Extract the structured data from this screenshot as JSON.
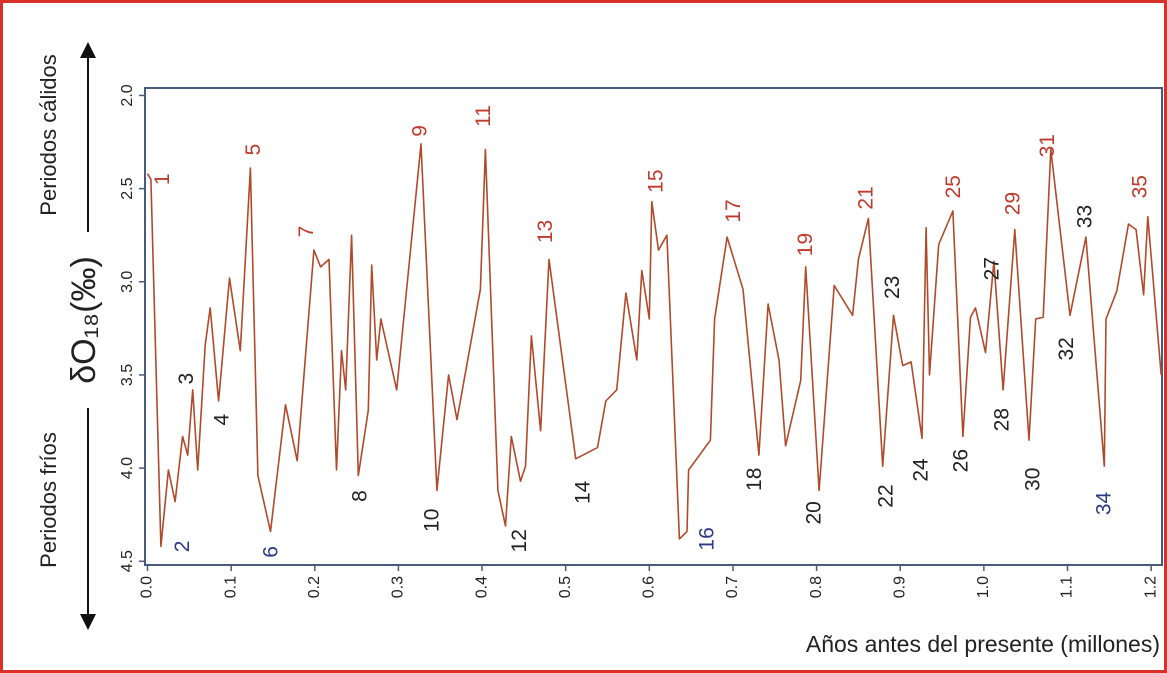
{
  "chart_data": {
    "type": "line",
    "y_label": "δO₁₈(‰)",
    "x_label": "Años antes del presente (millones)",
    "upper_side_label": "Periodos cálidos",
    "lower_side_label": "Periodos fríos",
    "xlim": [
      -0.003,
      1.213
    ],
    "ylim": [
      1.96,
      4.52
    ],
    "y_inverted": true,
    "xticks": [
      {
        "value": 0,
        "label": "0.0"
      },
      0.1,
      0.2,
      0.3,
      0.4,
      0.5,
      0.6,
      0.7,
      0.8,
      0.9,
      {
        "value": 1,
        "label": "1.0"
      },
      1.1,
      1.2
    ],
    "yticks": [
      {
        "value": 2,
        "label": "2.0"
      },
      2.5,
      {
        "value": 3,
        "label": "3.0"
      },
      3.5,
      {
        "value": 4,
        "label": "4.0"
      },
      4.5
    ],
    "x": [
      0.0,
      0.004,
      0.016,
      0.025,
      0.033,
      0.042,
      0.048,
      0.054,
      0.06,
      0.069,
      0.075,
      0.085,
      0.098,
      0.111,
      0.123,
      0.132,
      0.147,
      0.165,
      0.179,
      0.199,
      0.207,
      0.217,
      0.226,
      0.232,
      0.237,
      0.244,
      0.252,
      0.264,
      0.268,
      0.274,
      0.279,
      0.298,
      0.327,
      0.346,
      0.36,
      0.37,
      0.398,
      0.404,
      0.419,
      0.428,
      0.435,
      0.446,
      0.452,
      0.459,
      0.47,
      0.48,
      0.512,
      0.538,
      0.548,
      0.561,
      0.572,
      0.585,
      0.591,
      0.6,
      0.603,
      0.611,
      0.621,
      0.636,
      0.645,
      0.647,
      0.673,
      0.678,
      0.693,
      0.712,
      0.731,
      0.742,
      0.755,
      0.763,
      0.781,
      0.787,
      0.803,
      0.821,
      0.843,
      0.85,
      0.862,
      0.879,
      0.892,
      0.903,
      0.913,
      0.926,
      0.931,
      0.935,
      0.946,
      0.963,
      0.975,
      0.984,
      0.99,
      1.002,
      1.012,
      1.023,
      1.037,
      1.054,
      1.062,
      1.071,
      1.08,
      1.103,
      1.122,
      1.144,
      1.146,
      1.159,
      1.173,
      1.182,
      1.191,
      1.196,
      1.212
    ],
    "series": [
      {
        "color": "#b04a2a",
        "values": [
          2.42,
          2.45,
          4.42,
          4.01,
          4.18,
          3.83,
          3.93,
          3.58,
          4.01,
          3.34,
          3.14,
          3.64,
          2.98,
          3.37,
          2.39,
          4.04,
          4.34,
          3.66,
          3.96,
          2.83,
          2.92,
          2.88,
          4.01,
          3.37,
          3.58,
          2.75,
          4.04,
          3.69,
          2.91,
          3.42,
          3.2,
          3.58,
          2.26,
          4.12,
          3.5,
          3.74,
          3.04,
          2.29,
          4.12,
          4.31,
          3.83,
          4.07,
          3.99,
          3.29,
          3.8,
          2.88,
          3.95,
          3.89,
          3.64,
          3.58,
          3.06,
          3.42,
          2.94,
          3.2,
          2.57,
          2.83,
          2.75,
          4.38,
          4.34,
          4.01,
          3.85,
          3.2,
          2.76,
          3.04,
          3.93,
          3.12,
          3.42,
          3.88,
          3.53,
          2.92,
          4.12,
          3.02,
          3.18,
          2.88,
          2.66,
          3.99,
          3.18,
          3.45,
          3.43,
          3.84,
          2.71,
          3.5,
          2.8,
          2.62,
          3.83,
          3.19,
          3.14,
          3.38,
          2.89,
          3.58,
          2.72,
          3.85,
          3.2,
          3.19,
          2.29,
          3.18,
          2.76,
          3.99,
          3.2,
          3.05,
          2.69,
          2.72,
          3.07,
          2.65,
          3.5
        ]
      }
    ],
    "annotations": [
      {
        "text": "1",
        "x": 0.019,
        "y": 2.45,
        "color": "#c0392b"
      },
      {
        "text": "2",
        "x": 0.043,
        "y": 4.42,
        "color": "#2e3a87"
      },
      {
        "text": "3",
        "x": 0.048,
        "y": 3.52,
        "color": "#222222"
      },
      {
        "text": "4",
        "x": 0.09,
        "y": 3.74,
        "color": "#222222"
      },
      {
        "text": "5",
        "x": 0.128,
        "y": 2.29,
        "color": "#c0392b"
      },
      {
        "text": "6",
        "x": 0.149,
        "y": 4.45,
        "color": "#2e3a87"
      },
      {
        "text": "7",
        "x": 0.191,
        "y": 2.73,
        "color": "#c0392b"
      },
      {
        "text": "8",
        "x": 0.255,
        "y": 4.15,
        "color": "#222222"
      },
      {
        "text": "9",
        "x": 0.327,
        "y": 2.19,
        "color": "#c0392b"
      },
      {
        "text": "10",
        "x": 0.341,
        "y": 4.28,
        "color": "#222222"
      },
      {
        "text": "11",
        "x": 0.403,
        "y": 2.11,
        "color": "#c0392b"
      },
      {
        "text": "12",
        "x": 0.446,
        "y": 4.39,
        "color": "#222222"
      },
      {
        "text": "13",
        "x": 0.477,
        "y": 2.73,
        "color": "#c0392b"
      },
      {
        "text": "14",
        "x": 0.522,
        "y": 4.13,
        "color": "#222222"
      },
      {
        "text": "15",
        "x": 0.609,
        "y": 2.46,
        "color": "#c0392b"
      },
      {
        "text": "16",
        "x": 0.67,
        "y": 4.38,
        "color": "#2e3a87"
      },
      {
        "text": "17",
        "x": 0.702,
        "y": 2.62,
        "color": "#c0392b"
      },
      {
        "text": "18",
        "x": 0.727,
        "y": 4.06,
        "color": "#222222"
      },
      {
        "text": "19",
        "x": 0.788,
        "y": 2.8,
        "color": "#c0392b"
      },
      {
        "text": "20",
        "x": 0.798,
        "y": 4.24,
        "color": "#222222"
      },
      {
        "text": "21",
        "x": 0.86,
        "y": 2.55,
        "color": "#c0392b"
      },
      {
        "text": "22",
        "x": 0.884,
        "y": 4.15,
        "color": "#222222"
      },
      {
        "text": "23",
        "x": 0.892,
        "y": 3.03,
        "color": "#222222"
      },
      {
        "text": "24",
        "x": 0.926,
        "y": 4.01,
        "color": "#222222"
      },
      {
        "text": "25",
        "x": 0.965,
        "y": 2.49,
        "color": "#c0392b"
      },
      {
        "text": "26",
        "x": 0.974,
        "y": 3.96,
        "color": "#222222"
      },
      {
        "text": "27",
        "x": 1.011,
        "y": 2.93,
        "color": "#222222"
      },
      {
        "text": "28",
        "x": 1.023,
        "y": 3.74,
        "color": "#222222"
      },
      {
        "text": "29",
        "x": 1.036,
        "y": 2.58,
        "color": "#c0392b"
      },
      {
        "text": "30",
        "x": 1.06,
        "y": 4.06,
        "color": "#222222"
      },
      {
        "text": "31",
        "x": 1.077,
        "y": 2.27,
        "color": "#c0392b"
      },
      {
        "text": "32",
        "x": 1.1,
        "y": 3.36,
        "color": "#222222"
      },
      {
        "text": "33",
        "x": 1.122,
        "y": 2.65,
        "color": "#222222"
      },
      {
        "text": "34",
        "x": 1.145,
        "y": 4.19,
        "color": "#2e3a87"
      },
      {
        "text": "35",
        "x": 1.188,
        "y": 2.49,
        "color": "#c0392b"
      }
    ]
  }
}
